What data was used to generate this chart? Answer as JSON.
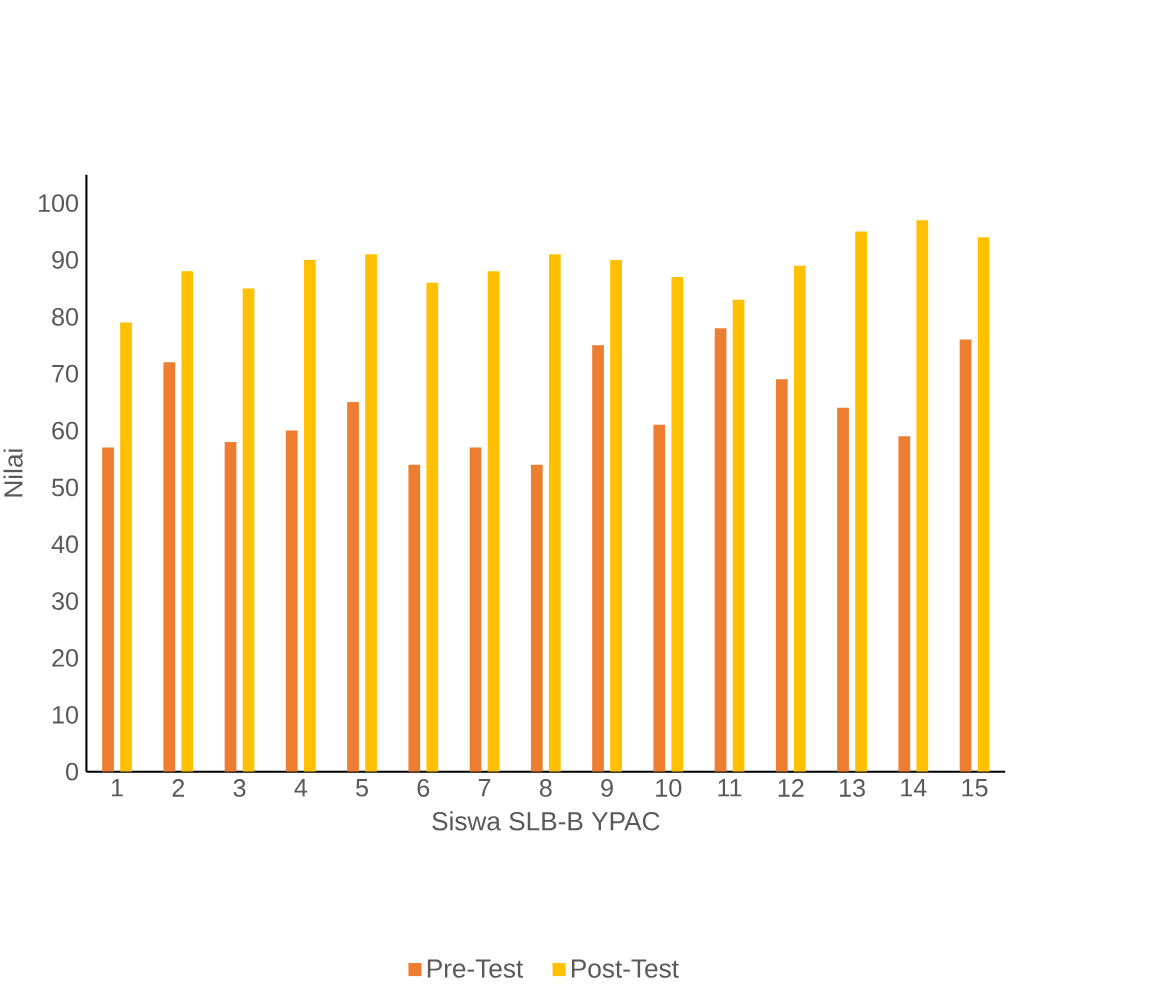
{
  "chart_data": {
    "type": "bar",
    "xlabel": "Siswa SLB-B YPAC",
    "ylabel": "Nilai",
    "categories": [
      "1",
      "2",
      "3",
      "4",
      "5",
      "6",
      "7",
      "8",
      "9",
      "10",
      "11",
      "12",
      "13",
      "14",
      "15"
    ],
    "series": [
      {
        "name": "Pre-Test",
        "color": "#ed7d31",
        "values": [
          57,
          72,
          58,
          60,
          65,
          54,
          57,
          54,
          75,
          61,
          78,
          69,
          64,
          59,
          76
        ]
      },
      {
        "name": "Post-Test",
        "color": "#ffc000",
        "values": [
          79,
          88,
          85,
          90,
          91,
          86,
          88,
          91,
          90,
          87,
          83,
          89,
          95,
          97,
          94
        ]
      }
    ],
    "ylim": [
      0,
      105
    ],
    "yticks": [
      0,
      10,
      20,
      30,
      40,
      50,
      60,
      70,
      80,
      90,
      100
    ],
    "grid": false,
    "legend": "bottom"
  }
}
